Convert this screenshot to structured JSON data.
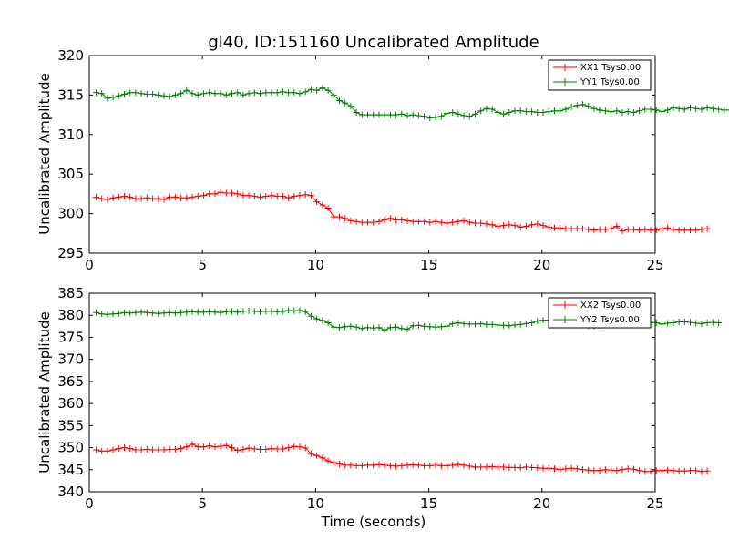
{
  "chart_data": [
    {
      "type": "line",
      "title": "gl40, ID:151160 Uncalibrated Amplitude",
      "xlabel": "",
      "ylabel": "Uncalibrated Amplitude",
      "xlim": [
        0,
        25
      ],
      "ylim": [
        295,
        320
      ],
      "xticks": [
        0,
        5,
        10,
        15,
        20,
        25
      ],
      "yticks": [
        295,
        300,
        305,
        310,
        315,
        320
      ],
      "xtick_labels": [
        "0",
        "5",
        "10",
        "15",
        "20",
        "25"
      ],
      "ytick_labels": [
        "295",
        "300",
        "305",
        "310",
        "315",
        "320"
      ],
      "legend_position": "top-right",
      "t_start": 0.3,
      "t_step": 0.25,
      "series": [
        {
          "name": "XX1 Tsys0.00",
          "color": "#ff0000",
          "values": [
            302.1,
            301.9,
            301.8,
            302.0,
            302.1,
            302.2,
            302.1,
            301.9,
            301.9,
            302.0,
            301.9,
            301.9,
            301.8,
            302.1,
            302.1,
            302.0,
            302.0,
            302.1,
            302.2,
            302.3,
            302.5,
            302.5,
            302.7,
            302.6,
            302.6,
            302.5,
            302.3,
            302.3,
            302.2,
            302.1,
            302.2,
            302.3,
            302.2,
            302.2,
            302.0,
            302.2,
            302.3,
            302.4,
            302.3,
            301.5,
            301.1,
            300.7,
            299.6,
            299.6,
            299.4,
            299.1,
            299.0,
            298.9,
            298.9,
            298.9,
            299.0,
            299.2,
            299.4,
            299.2,
            299.2,
            299.1,
            299.0,
            299.0,
            299.0,
            298.9,
            299.0,
            298.9,
            298.8,
            298.9,
            299.0,
            299.1,
            298.9,
            298.8,
            298.8,
            298.7,
            298.6,
            298.4,
            298.5,
            298.6,
            298.5,
            298.3,
            298.4,
            298.6,
            298.7,
            298.5,
            298.3,
            298.2,
            298.2,
            298.1,
            298.1,
            298.1,
            298.1,
            298.0,
            297.9,
            298.0,
            298.0,
            298.1,
            298.4,
            297.8,
            298.0,
            298.0,
            297.9,
            298.0,
            297.9,
            297.9,
            298.1,
            298.2,
            298.0,
            297.9,
            297.9,
            297.9,
            297.9,
            298.0,
            298.1
          ]
        },
        {
          "name": "YY1 Tsys0.00",
          "color": "#008000",
          "values": [
            315.3,
            315.2,
            314.6,
            314.7,
            314.9,
            315.1,
            315.3,
            315.3,
            315.2,
            315.1,
            315.1,
            315.0,
            314.9,
            314.8,
            315.0,
            315.2,
            315.6,
            315.2,
            315.0,
            315.2,
            315.3,
            315.2,
            315.2,
            315.0,
            315.2,
            315.3,
            315.0,
            315.2,
            315.3,
            315.2,
            315.3,
            315.3,
            315.3,
            315.4,
            315.3,
            315.3,
            315.2,
            315.4,
            315.7,
            315.6,
            315.9,
            315.6,
            315.0,
            314.3,
            314.0,
            313.6,
            312.8,
            312.5,
            312.5,
            312.5,
            312.5,
            312.5,
            312.5,
            312.5,
            312.6,
            312.4,
            312.5,
            312.4,
            312.3,
            312.1,
            312.2,
            312.3,
            312.7,
            312.8,
            312.6,
            312.4,
            312.3,
            312.6,
            313.0,
            313.3,
            313.2,
            312.8,
            312.6,
            312.8,
            313.0,
            313.0,
            312.9,
            312.9,
            312.8,
            312.8,
            312.9,
            313.0,
            313.0,
            313.2,
            313.5,
            313.7,
            313.8,
            313.6,
            313.3,
            313.1,
            313.0,
            312.9,
            313.0,
            312.8,
            312.9,
            312.8,
            313.0,
            313.2,
            313.2,
            313.1,
            312.9,
            313.1,
            313.4,
            313.3,
            313.2,
            313.4,
            313.3,
            313.2,
            313.4,
            313.3,
            313.2,
            313.1,
            313.1,
            313.3,
            313.4,
            313.2,
            313.0
          ]
        }
      ]
    },
    {
      "type": "line",
      "title": "",
      "xlabel": "Time (seconds)",
      "ylabel": "Uncalibrated Amplitude",
      "xlim": [
        0,
        25
      ],
      "ylim": [
        340,
        385
      ],
      "xticks": [
        0,
        5,
        10,
        15,
        20,
        25
      ],
      "yticks": [
        340,
        345,
        350,
        355,
        360,
        365,
        370,
        375,
        380,
        385
      ],
      "xtick_labels": [
        "0",
        "5",
        "10",
        "15",
        "20",
        "25"
      ],
      "ytick_labels": [
        "340",
        "345",
        "350",
        "355",
        "360",
        "365",
        "370",
        "375",
        "380",
        "385"
      ],
      "legend_position": "top-right",
      "t_start": 0.3,
      "t_step": 0.25,
      "series": [
        {
          "name": "XX2 Tsys0.00",
          "color": "#ff0000",
          "values": [
            349.5,
            349.2,
            349.2,
            349.5,
            349.8,
            350.0,
            349.8,
            349.5,
            349.5,
            349.6,
            349.5,
            349.5,
            349.5,
            349.6,
            349.6,
            349.8,
            350.2,
            350.8,
            350.2,
            350.2,
            350.4,
            350.2,
            350.3,
            350.5,
            350.0,
            349.4,
            349.6,
            349.9,
            349.7,
            349.6,
            349.6,
            349.8,
            349.7,
            349.7,
            350.0,
            350.3,
            350.2,
            349.9,
            348.6,
            348.2,
            347.7,
            347.0,
            346.6,
            346.3,
            346.0,
            346.0,
            345.9,
            345.9,
            346.0,
            346.0,
            346.2,
            346.0,
            345.9,
            345.8,
            345.9,
            346.0,
            346.1,
            346.0,
            345.9,
            345.9,
            346.0,
            345.9,
            345.9,
            346.0,
            346.2,
            346.0,
            345.8,
            345.6,
            345.6,
            345.6,
            345.7,
            345.6,
            345.6,
            345.5,
            345.5,
            345.4,
            345.6,
            345.5,
            345.4,
            345.3,
            345.3,
            345.2,
            345.0,
            345.2,
            345.3,
            345.2,
            345.0,
            344.9,
            344.8,
            344.8,
            345.0,
            344.9,
            344.8,
            345.0,
            345.2,
            345.1,
            344.8,
            344.6,
            344.6,
            344.8,
            344.8,
            344.9,
            344.8,
            344.7,
            344.7,
            344.8,
            344.8,
            344.6,
            344.7
          ]
        },
        {
          "name": "YY2 Tsys0.00",
          "color": "#008000",
          "values": [
            380.6,
            380.3,
            380.2,
            380.3,
            380.4,
            380.6,
            380.5,
            380.6,
            380.7,
            380.6,
            380.5,
            380.4,
            380.5,
            380.6,
            380.5,
            380.6,
            380.7,
            380.8,
            380.7,
            380.7,
            380.8,
            380.7,
            380.6,
            380.8,
            380.9,
            380.7,
            380.9,
            381.0,
            380.9,
            380.8,
            380.9,
            380.9,
            380.8,
            380.9,
            381.1,
            381.0,
            381.1,
            380.8,
            379.8,
            379.2,
            378.8,
            378.3,
            377.3,
            377.2,
            377.4,
            377.5,
            377.3,
            377.0,
            377.2,
            377.1,
            377.2,
            376.7,
            377.2,
            377.3,
            377.0,
            376.8,
            377.6,
            377.7,
            377.5,
            377.4,
            377.3,
            377.4,
            377.5,
            378.1,
            378.3,
            378.1,
            378.0,
            378.0,
            378.1,
            377.9,
            377.9,
            377.8,
            377.7,
            377.6,
            377.8,
            377.9,
            378.1,
            378.3,
            378.7,
            378.9,
            378.9,
            378.6,
            378.2,
            378.0,
            378.1,
            377.8,
            377.9,
            377.6,
            377.5,
            377.7,
            377.8,
            378.0,
            378.4,
            378.5,
            378.6,
            378.5,
            378.3,
            378.2,
            378.4,
            378.3,
            378.0,
            378.2,
            378.3,
            378.5,
            378.5,
            378.4,
            378.2,
            378.1,
            378.3,
            378.4,
            378.3
          ]
        }
      ]
    }
  ]
}
